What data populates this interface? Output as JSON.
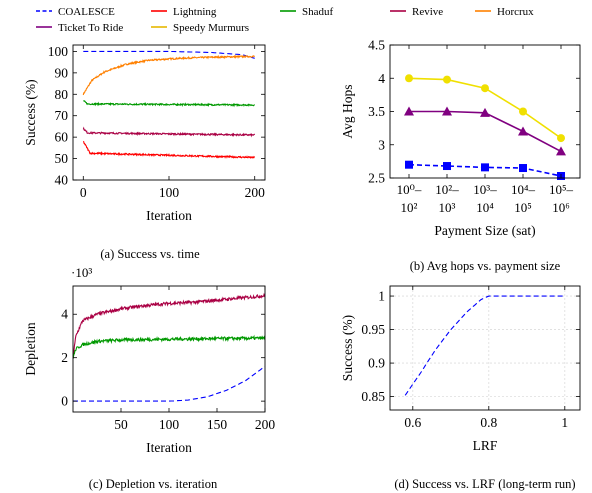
{
  "legend": {
    "entries": [
      {
        "name": "COALESCE",
        "color": "#0000ff",
        "dash": true
      },
      {
        "name": "Lightning",
        "color": "#ff0000",
        "dash": false
      },
      {
        "name": "Shaduf",
        "color": "#009900",
        "dash": false
      },
      {
        "name": "Revive",
        "color": "#aa0044",
        "dash": false
      },
      {
        "name": "Horcrux",
        "color": "#ff8000",
        "dash": false
      },
      {
        "name": "Ticket To Ride",
        "color": "#800080",
        "dash": false
      },
      {
        "name": "Speedy Murmurs",
        "color": "#e6b800",
        "dash": false
      }
    ]
  },
  "chart_data": [
    {
      "id": "a",
      "type": "line",
      "caption": "(a) Success vs. time",
      "xlabel": "Iteration",
      "ylabel": "Success (%)",
      "xlim": [
        -12,
        212
      ],
      "ylim": [
        40,
        103
      ],
      "xticks": [
        0,
        100,
        200
      ],
      "yticks": [
        40,
        50,
        60,
        70,
        80,
        90,
        100
      ],
      "series": [
        {
          "name": "COALESCE",
          "color": "#0000ff",
          "dash": true,
          "x": [
            0,
            100,
            150,
            185,
            200
          ],
          "y": [
            100,
            100,
            99.5,
            98.5,
            96.8
          ]
        },
        {
          "name": "Horcrux",
          "color": "#ff8000",
          "x": [
            0,
            10,
            25,
            50,
            75,
            100,
            125,
            150,
            175,
            200
          ],
          "y": [
            80,
            86.5,
            90.5,
            94,
            95.8,
            96.5,
            97,
            97.3,
            97.5,
            97.7
          ]
        },
        {
          "name": "Shaduf",
          "color": "#009900",
          "x": [
            0,
            5,
            200
          ],
          "y": [
            77,
            75.5,
            75
          ]
        },
        {
          "name": "Revive",
          "color": "#aa0044",
          "x": [
            0,
            5,
            200
          ],
          "y": [
            64,
            62,
            61
          ]
        },
        {
          "name": "Lightning",
          "color": "#ff0000",
          "x": [
            0,
            8,
            200
          ],
          "y": [
            58,
            52.5,
            50.5
          ]
        }
      ]
    },
    {
      "id": "b",
      "type": "line",
      "caption": "(b) Avg hops vs. payment size",
      "xlabel": "Payment Size (sat)",
      "ylabel": "Avg Hops",
      "categories": [
        {
          "top": "10⁰–",
          "bottom": "10²"
        },
        {
          "top": "10²–",
          "bottom": "10³"
        },
        {
          "top": "10³–",
          "bottom": "10⁴"
        },
        {
          "top": "10⁴–",
          "bottom": "10⁵"
        },
        {
          "top": "10⁵–",
          "bottom": "10⁶"
        }
      ],
      "ylim": [
        2.5,
        4.5
      ],
      "yticks": [
        "2.5",
        "3",
        "3.5",
        "4",
        "4.5"
      ],
      "series": [
        {
          "name": "Speedy Murmurs",
          "color": "#f0e000",
          "marker": "circle",
          "values": [
            4.0,
            3.98,
            3.85,
            3.5,
            3.1
          ]
        },
        {
          "name": "Ticket To Ride",
          "color": "#800080",
          "marker": "triangle",
          "values": [
            3.5,
            3.5,
            3.48,
            3.2,
            2.9
          ]
        },
        {
          "name": "COALESCE",
          "color": "#0000ff",
          "marker": "square",
          "dash": true,
          "values": [
            2.7,
            2.68,
            2.66,
            2.65,
            2.53
          ]
        }
      ]
    },
    {
      "id": "c",
      "type": "line",
      "caption": "(c) Depletion vs. iteration",
      "xlabel": "Iteration",
      "ylabel": "Depletion",
      "scale_label": "·10³",
      "xlim": [
        0,
        200
      ],
      "ylim": [
        -0.5,
        5.3
      ],
      "xticks": [
        50,
        100,
        150,
        200
      ],
      "yticks": [
        0,
        2,
        4
      ],
      "series": [
        {
          "name": "Revive",
          "color": "#aa0044",
          "x": [
            0,
            3,
            10,
            25,
            50,
            75,
            100,
            125,
            150,
            175,
            200
          ],
          "y": [
            2.0,
            3.0,
            3.7,
            4.0,
            4.25,
            4.4,
            4.5,
            4.55,
            4.65,
            4.75,
            4.85
          ]
        },
        {
          "name": "Shaduf",
          "color": "#009900",
          "x": [
            0,
            3,
            10,
            25,
            50,
            100,
            150,
            200
          ],
          "y": [
            2.0,
            2.4,
            2.6,
            2.75,
            2.82,
            2.85,
            2.88,
            2.9
          ]
        },
        {
          "name": "COALESCE",
          "color": "#0000ff",
          "dash": true,
          "x": [
            0,
            100,
            120,
            140,
            160,
            180,
            200
          ],
          "y": [
            0,
            0,
            0.05,
            0.2,
            0.5,
            0.95,
            1.6
          ]
        }
      ]
    },
    {
      "id": "d",
      "type": "line",
      "caption": "(d) Success vs. LRF (long-term run)",
      "xlabel": "LRF",
      "ylabel": "Success (%)",
      "xlim": [
        0.54,
        1.04
      ],
      "ylim": [
        0.83,
        1.015
      ],
      "xticks": [
        "0.6",
        "0.8",
        "1"
      ],
      "yticks": [
        "0.85",
        "0.9",
        "0.95",
        "1"
      ],
      "series": [
        {
          "name": "COALESCE",
          "color": "#0000ff",
          "dash": true,
          "x": [
            0.58,
            0.62,
            0.66,
            0.7,
            0.74,
            0.78,
            0.8,
            0.82,
            0.9,
            1.0
          ],
          "y": [
            0.852,
            0.885,
            0.92,
            0.95,
            0.975,
            0.995,
            1.0,
            1.0,
            1.0,
            1.0
          ]
        }
      ]
    }
  ]
}
